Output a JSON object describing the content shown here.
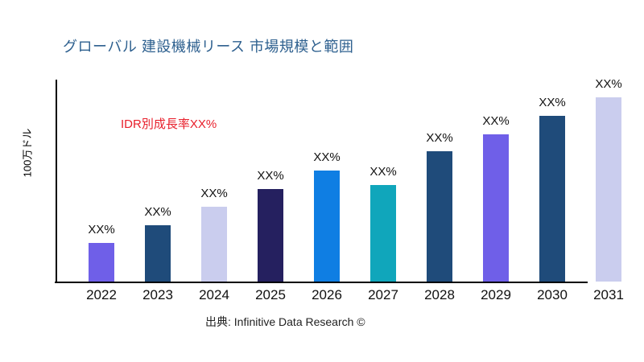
{
  "page": {
    "title": "グローバル 建設機械リース 市場規模と範囲",
    "source": "出典: Infinitive Data Research ©"
  },
  "chart_data": {
    "type": "bar",
    "title": "グローバル 建設機械リース 市場規模と範囲",
    "ylabel": "100万ドル",
    "xlabel": "",
    "annotation": "IDR別成長率XX%",
    "categories": [
      "2022",
      "2023",
      "2024",
      "2025",
      "2026",
      "2027",
      "2028",
      "2029",
      "2030",
      "2031"
    ],
    "bar_labels": [
      "XX%",
      "XX%",
      "XX%",
      "XX%",
      "XX%",
      "XX%",
      "XX%",
      "XX%",
      "XX%",
      "XX%"
    ],
    "values_relative": [
      48,
      70,
      93,
      115,
      138,
      120,
      162,
      183,
      206,
      229
    ],
    "ylim": [
      0,
      260
    ],
    "grid": false,
    "legend": false,
    "bar_colors": [
      "#6f5fe8",
      "#1f4b7a",
      "#cacdee",
      "#25205f",
      "#0f7ee3",
      "#10a6bb",
      "#1f4b7a",
      "#6f5fe8",
      "#1f4b7a",
      "#cacdee"
    ]
  },
  "colors": {
    "title": "#2e608f",
    "annotation": "#e8202c",
    "axis": "#000000",
    "text": "#111111"
  }
}
